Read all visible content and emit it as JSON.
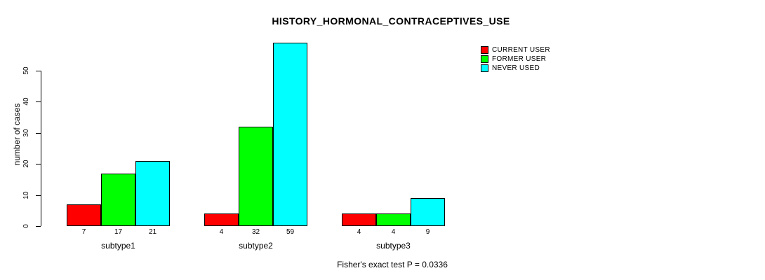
{
  "chart_data": {
    "type": "bar",
    "title": "HISTORY_HORMONAL_CONTRACEPTIVES_USE",
    "ylabel": "number of cases",
    "xlabel": "",
    "categories": [
      "subtype1",
      "subtype2",
      "subtype3"
    ],
    "series": [
      {
        "name": "CURRENT USER",
        "color": "#FF0000",
        "values": [
          7,
          4,
          4
        ]
      },
      {
        "name": "FORMER USER",
        "color": "#00FF00",
        "values": [
          17,
          32,
          4
        ]
      },
      {
        "name": "NEVER USED",
        "color": "#00FFFF",
        "values": [
          21,
          59,
          9
        ]
      }
    ],
    "bar_value_labels": [
      [
        7,
        17,
        21
      ],
      [
        4,
        32,
        59
      ],
      [
        4,
        4,
        9
      ]
    ],
    "yticks": [
      0,
      10,
      20,
      30,
      40,
      50
    ],
    "ylim": [
      0,
      59
    ],
    "grid": false,
    "legend_position": "right",
    "footnote": "Fisher's exact test P = 0.0336"
  }
}
